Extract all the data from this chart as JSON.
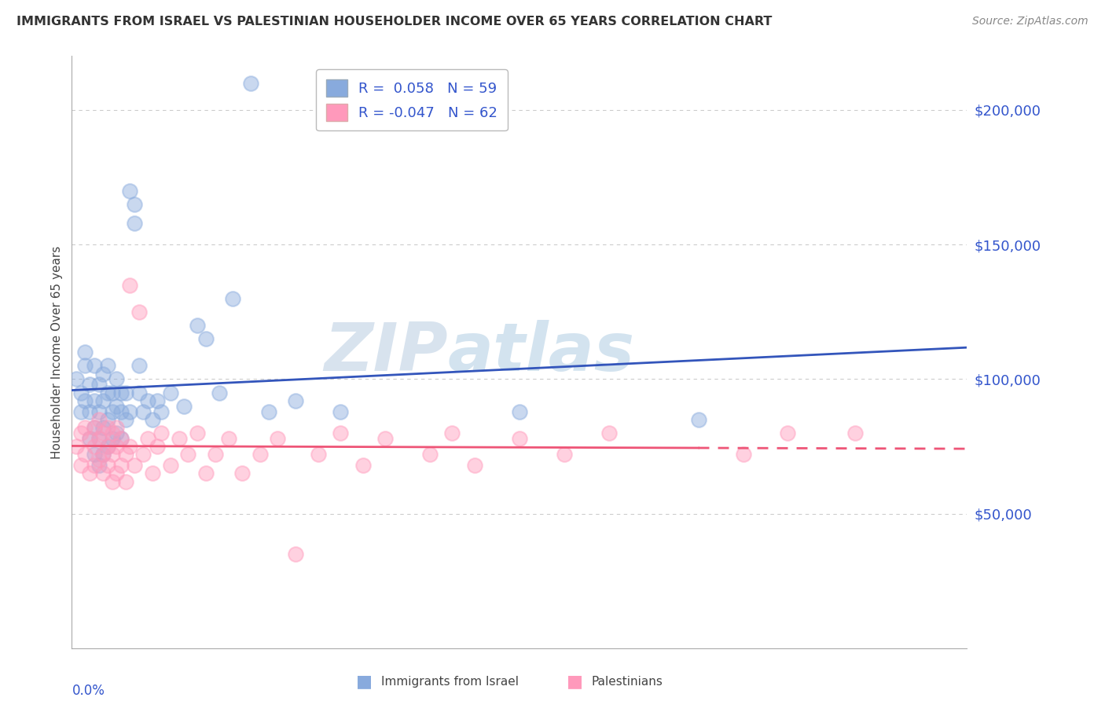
{
  "title": "IMMIGRANTS FROM ISRAEL VS PALESTINIAN HOUSEHOLDER INCOME OVER 65 YEARS CORRELATION CHART",
  "source": "Source: ZipAtlas.com",
  "ylabel": "Householder Income Over 65 years",
  "xlim": [
    0.0,
    0.2
  ],
  "ylim": [
    0,
    220000
  ],
  "yticks": [
    50000,
    100000,
    150000,
    200000
  ],
  "ytick_labels": [
    "$50,000",
    "$100,000",
    "$150,000",
    "$200,000"
  ],
  "watermark_zip": "ZIP",
  "watermark_atlas": "atlas",
  "israel_color": "#88aadd",
  "pal_color": "#ff99bb",
  "trend_israel_color": "#3355bb",
  "trend_pal_color": "#ee5577",
  "israel_scatter_x": [
    0.001,
    0.002,
    0.002,
    0.003,
    0.003,
    0.003,
    0.004,
    0.004,
    0.004,
    0.005,
    0.005,
    0.005,
    0.005,
    0.006,
    0.006,
    0.006,
    0.006,
    0.007,
    0.007,
    0.007,
    0.007,
    0.008,
    0.008,
    0.008,
    0.008,
    0.009,
    0.009,
    0.009,
    0.01,
    0.01,
    0.01,
    0.011,
    0.011,
    0.011,
    0.012,
    0.012,
    0.013,
    0.013,
    0.014,
    0.014,
    0.015,
    0.015,
    0.016,
    0.017,
    0.018,
    0.019,
    0.02,
    0.022,
    0.025,
    0.028,
    0.03,
    0.033,
    0.036,
    0.04,
    0.044,
    0.05,
    0.06,
    0.1,
    0.14
  ],
  "israel_scatter_y": [
    100000,
    88000,
    95000,
    105000,
    92000,
    110000,
    78000,
    88000,
    98000,
    72000,
    82000,
    92000,
    105000,
    68000,
    78000,
    88000,
    98000,
    72000,
    82000,
    92000,
    102000,
    75000,
    85000,
    95000,
    105000,
    78000,
    88000,
    95000,
    80000,
    90000,
    100000,
    78000,
    88000,
    95000,
    85000,
    95000,
    88000,
    170000,
    165000,
    158000,
    95000,
    105000,
    88000,
    92000,
    85000,
    92000,
    88000,
    95000,
    90000,
    120000,
    115000,
    95000,
    130000,
    210000,
    88000,
    92000,
    88000,
    88000,
    85000
  ],
  "pal_scatter_x": [
    0.001,
    0.002,
    0.002,
    0.003,
    0.003,
    0.004,
    0.004,
    0.005,
    0.005,
    0.005,
    0.006,
    0.006,
    0.006,
    0.007,
    0.007,
    0.007,
    0.008,
    0.008,
    0.008,
    0.009,
    0.009,
    0.009,
    0.01,
    0.01,
    0.01,
    0.011,
    0.011,
    0.012,
    0.012,
    0.013,
    0.013,
    0.014,
    0.015,
    0.016,
    0.017,
    0.018,
    0.019,
    0.02,
    0.022,
    0.024,
    0.026,
    0.028,
    0.03,
    0.032,
    0.035,
    0.038,
    0.042,
    0.046,
    0.05,
    0.055,
    0.06,
    0.065,
    0.07,
    0.08,
    0.085,
    0.09,
    0.1,
    0.11,
    0.12,
    0.15,
    0.16,
    0.175
  ],
  "pal_scatter_y": [
    75000,
    68000,
    80000,
    72000,
    82000,
    65000,
    78000,
    68000,
    75000,
    82000,
    70000,
    78000,
    85000,
    65000,
    72000,
    80000,
    68000,
    75000,
    82000,
    62000,
    72000,
    80000,
    65000,
    75000,
    82000,
    68000,
    78000,
    62000,
    72000,
    135000,
    75000,
    68000,
    125000,
    72000,
    78000,
    65000,
    75000,
    80000,
    68000,
    78000,
    72000,
    80000,
    65000,
    72000,
    78000,
    65000,
    72000,
    78000,
    35000,
    72000,
    80000,
    68000,
    78000,
    72000,
    80000,
    68000,
    78000,
    72000,
    80000,
    72000,
    80000,
    80000
  ]
}
